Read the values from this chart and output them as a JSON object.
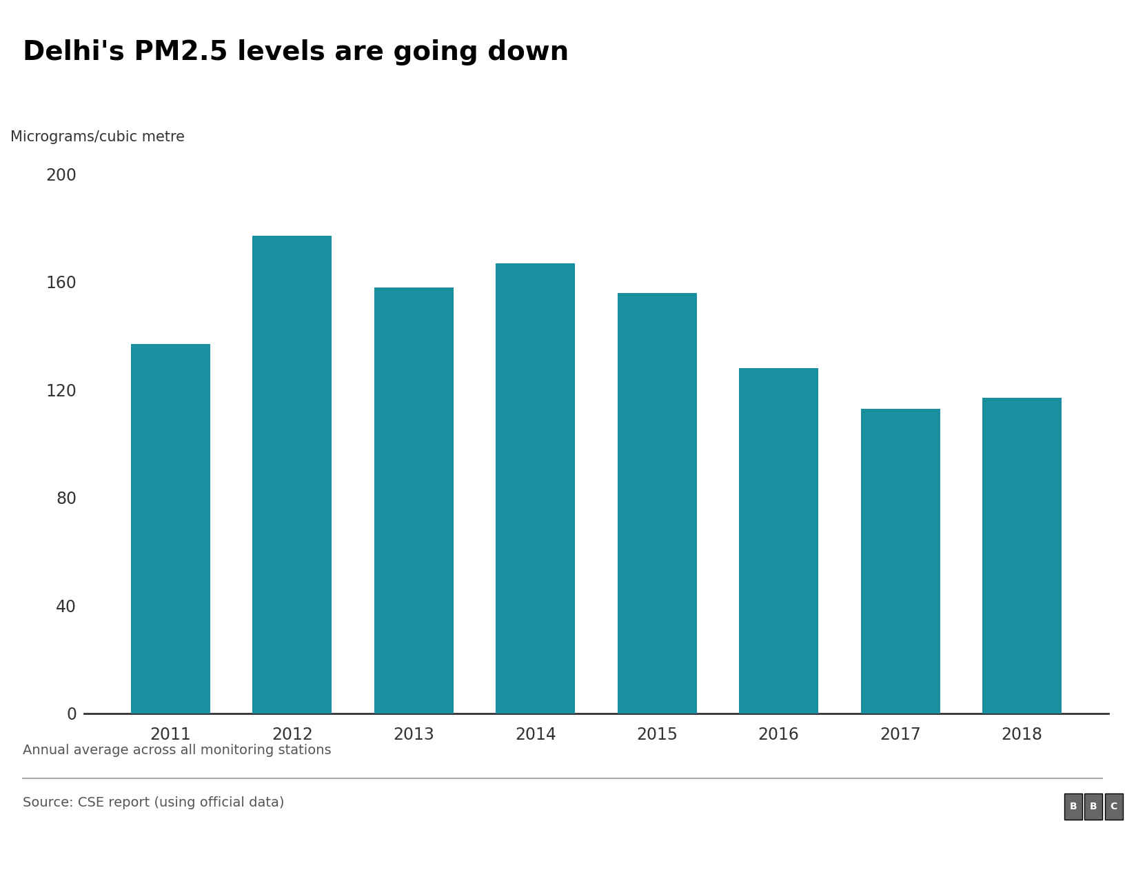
{
  "title": "Delhi's PM2.5 levels are going down",
  "ylabel": "Micrograms/cubic metre",
  "categories": [
    "2011",
    "2012",
    "2013",
    "2014",
    "2015",
    "2016",
    "2017",
    "2018"
  ],
  "values": [
    137,
    177,
    158,
    167,
    156,
    128,
    113,
    117
  ],
  "bar_color": "#1a8fa0",
  "ylim": [
    0,
    200
  ],
  "yticks": [
    0,
    40,
    80,
    120,
    160,
    200
  ],
  "background_color": "#ffffff",
  "title_fontsize": 28,
  "ylabel_fontsize": 15,
  "tick_fontsize": 17,
  "footnote": "Annual average across all monitoring stations",
  "source": "Source: CSE report (using official data)",
  "bbc_logo": "BBC"
}
